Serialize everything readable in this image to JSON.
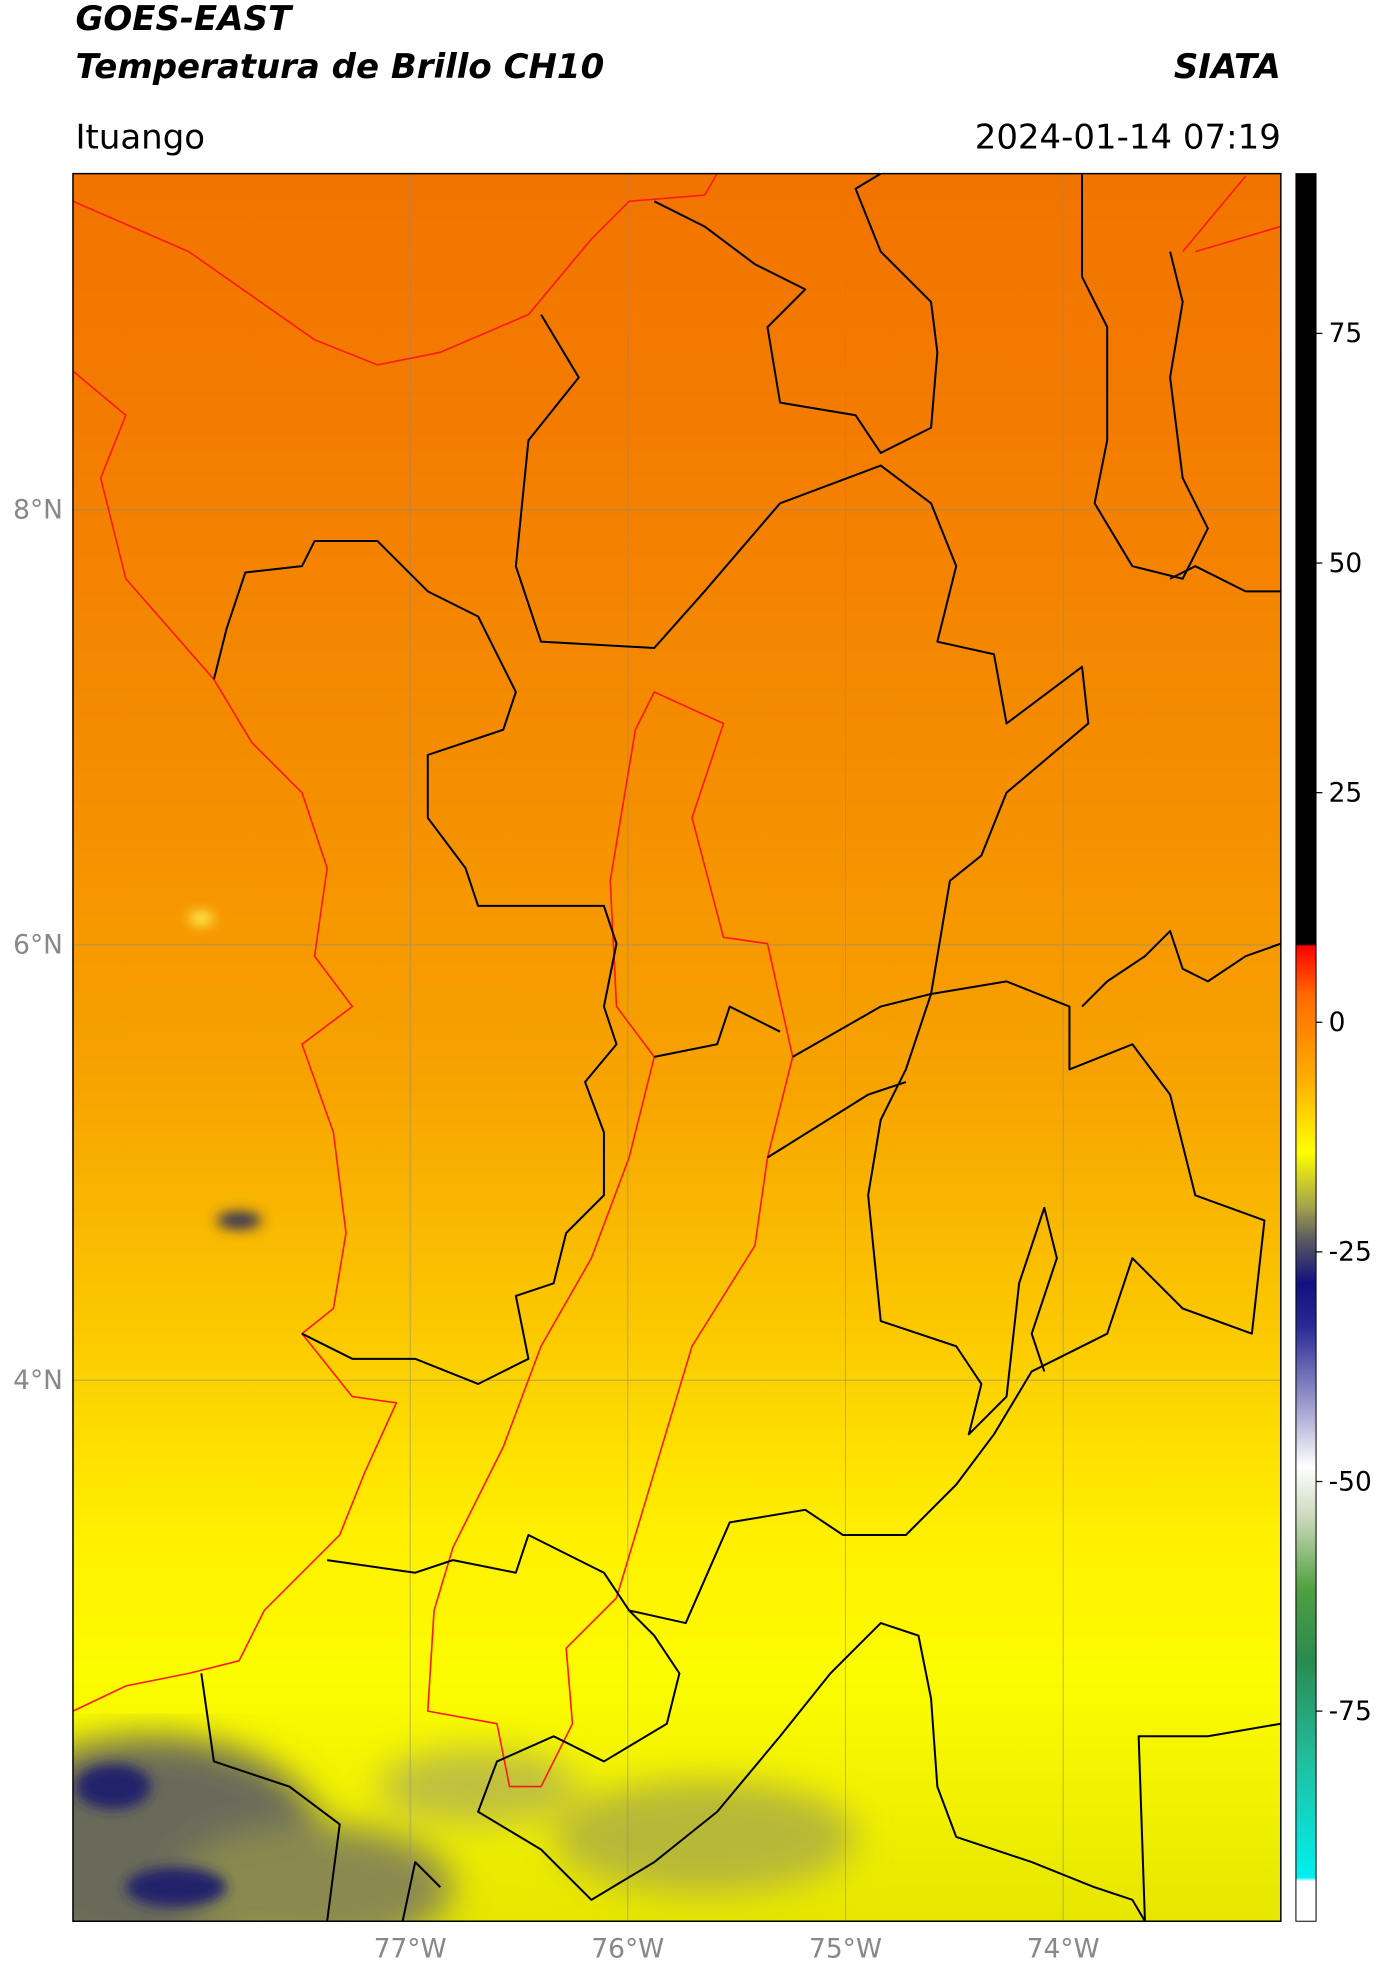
{
  "header": {
    "title": "GOES-EAST",
    "subtitle": "Temperatura de Brillo CH10",
    "source": "SIATA",
    "region": "Ituango",
    "datetime": "2024-01-14 07:19"
  },
  "map": {
    "lat_ticks": [
      "8°N",
      "6°N",
      "4°N"
    ],
    "lon_ticks": [
      "77°W",
      "76°W",
      "75°W",
      "74°W"
    ]
  },
  "colorbar": {
    "ticks": [
      75,
      50,
      25,
      0,
      -25,
      -50,
      -75
    ]
  }
}
